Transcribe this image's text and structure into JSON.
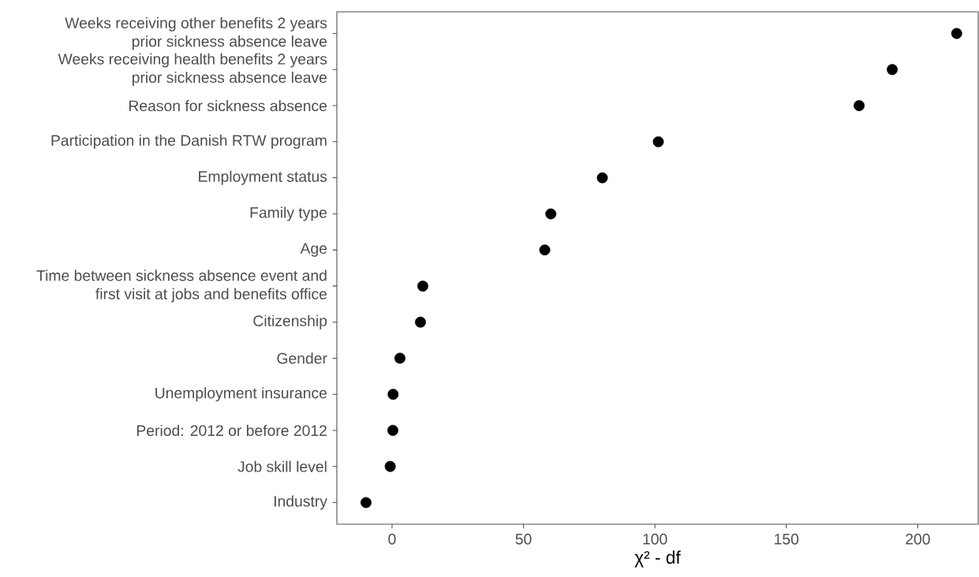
{
  "chart_data": {
    "type": "scatter",
    "orientation": "horizontal",
    "xlabel": "χ² - df",
    "categories": [
      "Weeks receiving other benefits 2 years prior sickness absence leave",
      "Weeks receiving health benefits 2 years prior sickness absence leave",
      "Reason for sickness absence",
      "Participation in the Danish RTW program",
      "Employment status",
      "Family type",
      "Age",
      "Time between sickness absence event and first visit at jobs and benefits office",
      "Citizenship",
      "Gender",
      "Unemployment insurance",
      "Period: 2012 or before 2012",
      "Job skill level",
      "Industry"
    ],
    "values": [
      214.8,
      190.3,
      177.7,
      101.3,
      80.0,
      60.4,
      58.1,
      11.7,
      10.8,
      3.0,
      0.4,
      0.3,
      -0.7,
      -9.9
    ],
    "color": "#000000",
    "marker": "circle",
    "xlim": [
      -21,
      223
    ],
    "xticks": [
      0,
      50,
      100,
      150,
      200
    ]
  }
}
